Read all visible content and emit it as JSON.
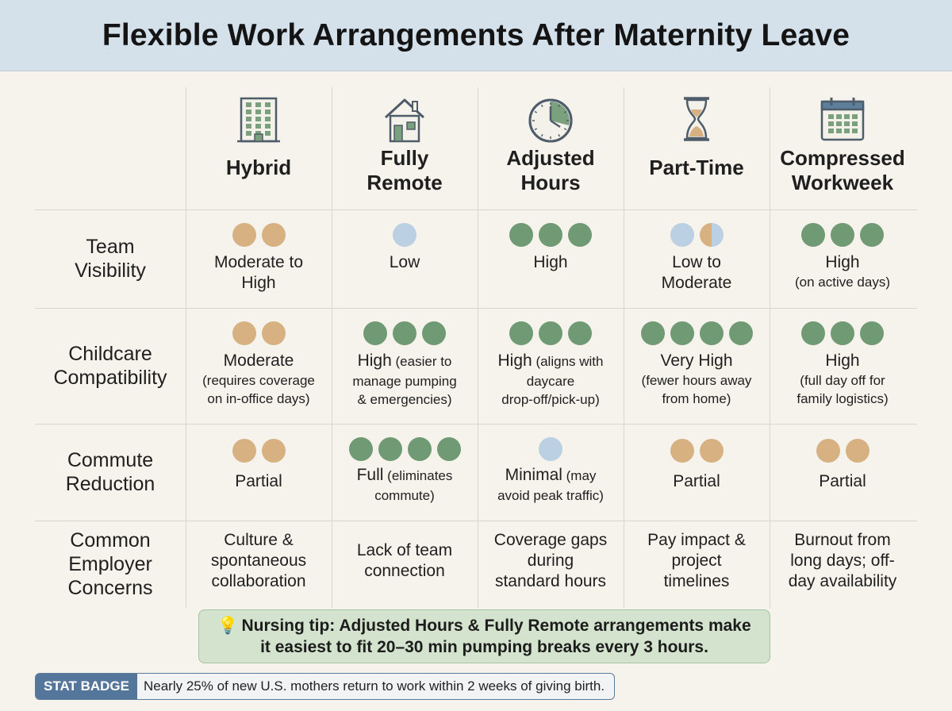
{
  "title": "Flexible Work Arrangements After Maternity Leave",
  "columns": [
    {
      "name_lines": [
        "Hybrid"
      ],
      "icon": "office-building-icon"
    },
    {
      "name_lines": [
        "Fully",
        "Remote"
      ],
      "icon": "house-icon"
    },
    {
      "name_lines": [
        "Adjusted",
        "Hours"
      ],
      "icon": "clock-icon"
    },
    {
      "name_lines": [
        "Part-Time"
      ],
      "icon": "hourglass-icon"
    },
    {
      "name_lines": [
        "Compressed",
        "Workweek"
      ],
      "icon": "calendar-icon"
    }
  ],
  "row_labels": {
    "team_visibility": [
      "Team",
      "Visibility"
    ],
    "childcare": [
      "Childcare",
      "Compatibility"
    ],
    "commute": [
      "Commute",
      "Reduction"
    ],
    "concerns": [
      "Common",
      "Employer",
      "Concerns"
    ]
  },
  "team_visibility": [
    {
      "dots": [
        "tan",
        "tan"
      ],
      "main": [
        "Moderate to",
        "High"
      ],
      "sub": []
    },
    {
      "dots": [
        "blue"
      ],
      "main": [
        "Low"
      ],
      "sub": []
    },
    {
      "dots": [
        "green",
        "green",
        "green"
      ],
      "main": [
        "High"
      ],
      "sub": []
    },
    {
      "dots": [
        "blue",
        "half"
      ],
      "main": [
        "Low to",
        "Moderate"
      ],
      "sub": []
    },
    {
      "dots": [
        "green",
        "green",
        "green"
      ],
      "main": [
        "High"
      ],
      "sub": [
        "(on active days)"
      ]
    }
  ],
  "childcare": [
    {
      "dots": [
        "tan",
        "tan"
      ],
      "main": "Moderate",
      "main_small": "",
      "sub": [
        "(requires coverage",
        "on in-office days)"
      ]
    },
    {
      "dots": [
        "green",
        "green",
        "green"
      ],
      "main": "High",
      "main_small": "(easier to",
      "sub": [
        "manage pumping",
        "& emergencies)"
      ]
    },
    {
      "dots": [
        "green",
        "green",
        "green"
      ],
      "main": "High",
      "main_small": "(aligns with",
      "sub": [
        "daycare",
        "drop-off/pick-up)"
      ]
    },
    {
      "dots": [
        "green",
        "green",
        "green",
        "green"
      ],
      "main": "Very High",
      "main_small": "",
      "sub": [
        "(fewer hours away",
        "from home)"
      ]
    },
    {
      "dots": [
        "green",
        "green",
        "green"
      ],
      "main": "High",
      "main_small": "",
      "sub": [
        "(full day off for",
        "family logistics)"
      ]
    }
  ],
  "commute": [
    {
      "dots": [
        "tan",
        "tan"
      ],
      "main": "Partial",
      "main_small": "",
      "sub": []
    },
    {
      "dots": [
        "green",
        "green",
        "green",
        "green"
      ],
      "main": "Full",
      "main_small": "(eliminates",
      "sub": [
        "commute)"
      ]
    },
    {
      "dots": [
        "blue"
      ],
      "main": "Minimal",
      "main_small": "(may",
      "sub": [
        "avoid peak traffic)"
      ]
    },
    {
      "dots": [
        "tan",
        "tan"
      ],
      "main": "Partial",
      "main_small": "",
      "sub": []
    },
    {
      "dots": [
        "tan",
        "tan"
      ],
      "main": "Partial",
      "main_small": "",
      "sub": []
    }
  ],
  "concerns": [
    [
      "Culture &",
      "spontaneous",
      "collaboration"
    ],
    [
      "Lack of team",
      "connection"
    ],
    [
      "Coverage gaps",
      "during",
      "standard hours"
    ],
    [
      "Pay impact &",
      "project",
      "timelines"
    ],
    [
      "Burnout from",
      "long days; off-",
      "day availability"
    ]
  ],
  "tip": {
    "icon": "lightbulb-icon",
    "line1": "Nursing tip: Adjusted Hours & Fully Remote arrangements make",
    "line2": "it easiest to fit 20–30 min pumping breaks every 3 hours."
  },
  "stat": {
    "badge": "STAT BADGE",
    "text": "Nearly 25% of new U.S. mothers return to work within 2 weeks of giving birth."
  },
  "colors": {
    "tan": "#d8b183",
    "green": "#6f9a73",
    "blue": "#bcd0e3",
    "header_bg": "#d4e0ea"
  }
}
